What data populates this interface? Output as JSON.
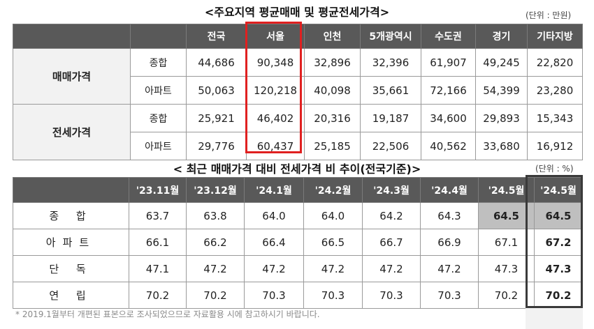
{
  "table1": {
    "title": "<주요지역 평균매매 및 평균전세가격>",
    "unit": "(단위 : 만원)",
    "columns": [
      "전국",
      "서울",
      "인천",
      "5개광역시",
      "수도권",
      "경기",
      "기타지방"
    ],
    "groups": [
      {
        "label": "매매가격",
        "rows": [
          {
            "type": "종합",
            "values": [
              "44,686",
              "90,348",
              "32,896",
              "32,396",
              "61,907",
              "49,245",
              "22,820"
            ]
          },
          {
            "type": "아파트",
            "values": [
              "50,063",
              "120,218",
              "40,098",
              "35,661",
              "72,166",
              "54,399",
              "23,280"
            ]
          }
        ]
      },
      {
        "label": "전세가격",
        "rows": [
          {
            "type": "종합",
            "values": [
              "25,921",
              "46,402",
              "20,316",
              "19,187",
              "34,600",
              "29,893",
              "15,343"
            ]
          },
          {
            "type": "아파트",
            "values": [
              "29,776",
              "60,437",
              "25,185",
              "22,506",
              "40,562",
              "33,680",
              "16,912"
            ]
          }
        ]
      }
    ],
    "highlight_color": "#e02020"
  },
  "table2": {
    "title": "< 최근 매매가격 대비 전세가격 비 추이(전국기준)>",
    "unit": "(단위 : %)",
    "columns": [
      "'23.11월",
      "'23.12월",
      "'24.1월",
      "'24.2월",
      "'24.3월",
      "'24.4월",
      "'24.5월",
      "'24.5월"
    ],
    "rows": [
      {
        "label": "종 합",
        "values": [
          "63.7",
          "63.8",
          "64.0",
          "64.0",
          "64.2",
          "64.3",
          "64.5",
          "64.5"
        ]
      },
      {
        "label": "아파트",
        "values": [
          "66.1",
          "66.2",
          "66.4",
          "66.5",
          "66.7",
          "66.9",
          "67.1",
          "67.2"
        ]
      },
      {
        "label": "단 독",
        "values": [
          "47.1",
          "47.2",
          "47.2",
          "47.2",
          "47.2",
          "47.2",
          "47.3",
          "47.3"
        ]
      },
      {
        "label": "연 립",
        "values": [
          "70.2",
          "70.2",
          "70.3",
          "70.3",
          "70.3",
          "70.3",
          "70.2",
          "70.2"
        ]
      }
    ]
  },
  "footnote": "* 2019.1월부터 개편된 표본으로 조사되었으므로 자료활용 시에 참고하시기 바랍니다."
}
